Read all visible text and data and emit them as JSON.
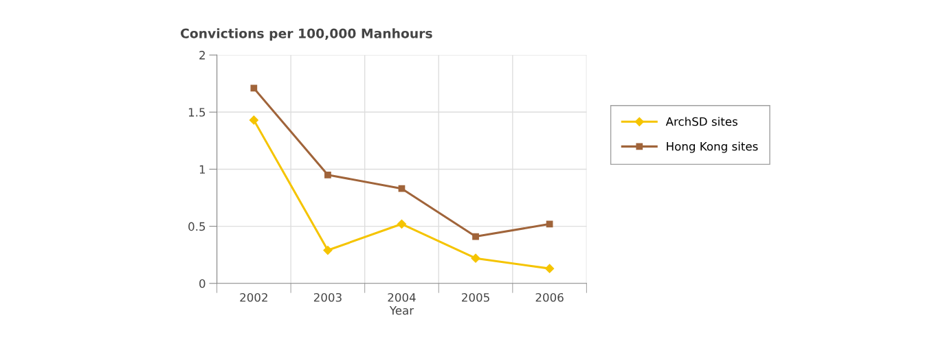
{
  "chart_data": {
    "type": "line",
    "title": "Convictions per 100,000 Manhours",
    "xlabel": "Year",
    "categories": [
      "2002",
      "2003",
      "2004",
      "2005",
      "2006"
    ],
    "series": [
      {
        "name": "ArchSD sites",
        "color": "#f5c400",
        "marker": "diamond",
        "values": [
          1.43,
          0.29,
          0.52,
          0.22,
          0.13
        ]
      },
      {
        "name": "Hong Kong sites",
        "color": "#a0643a",
        "marker": "square",
        "values": [
          1.71,
          0.95,
          0.83,
          0.41,
          0.52
        ]
      }
    ],
    "ylim": [
      0,
      2
    ],
    "yticks": [
      0,
      0.5,
      1,
      1.5,
      2
    ],
    "grid": true,
    "legend": "right",
    "line_style": "solid"
  }
}
